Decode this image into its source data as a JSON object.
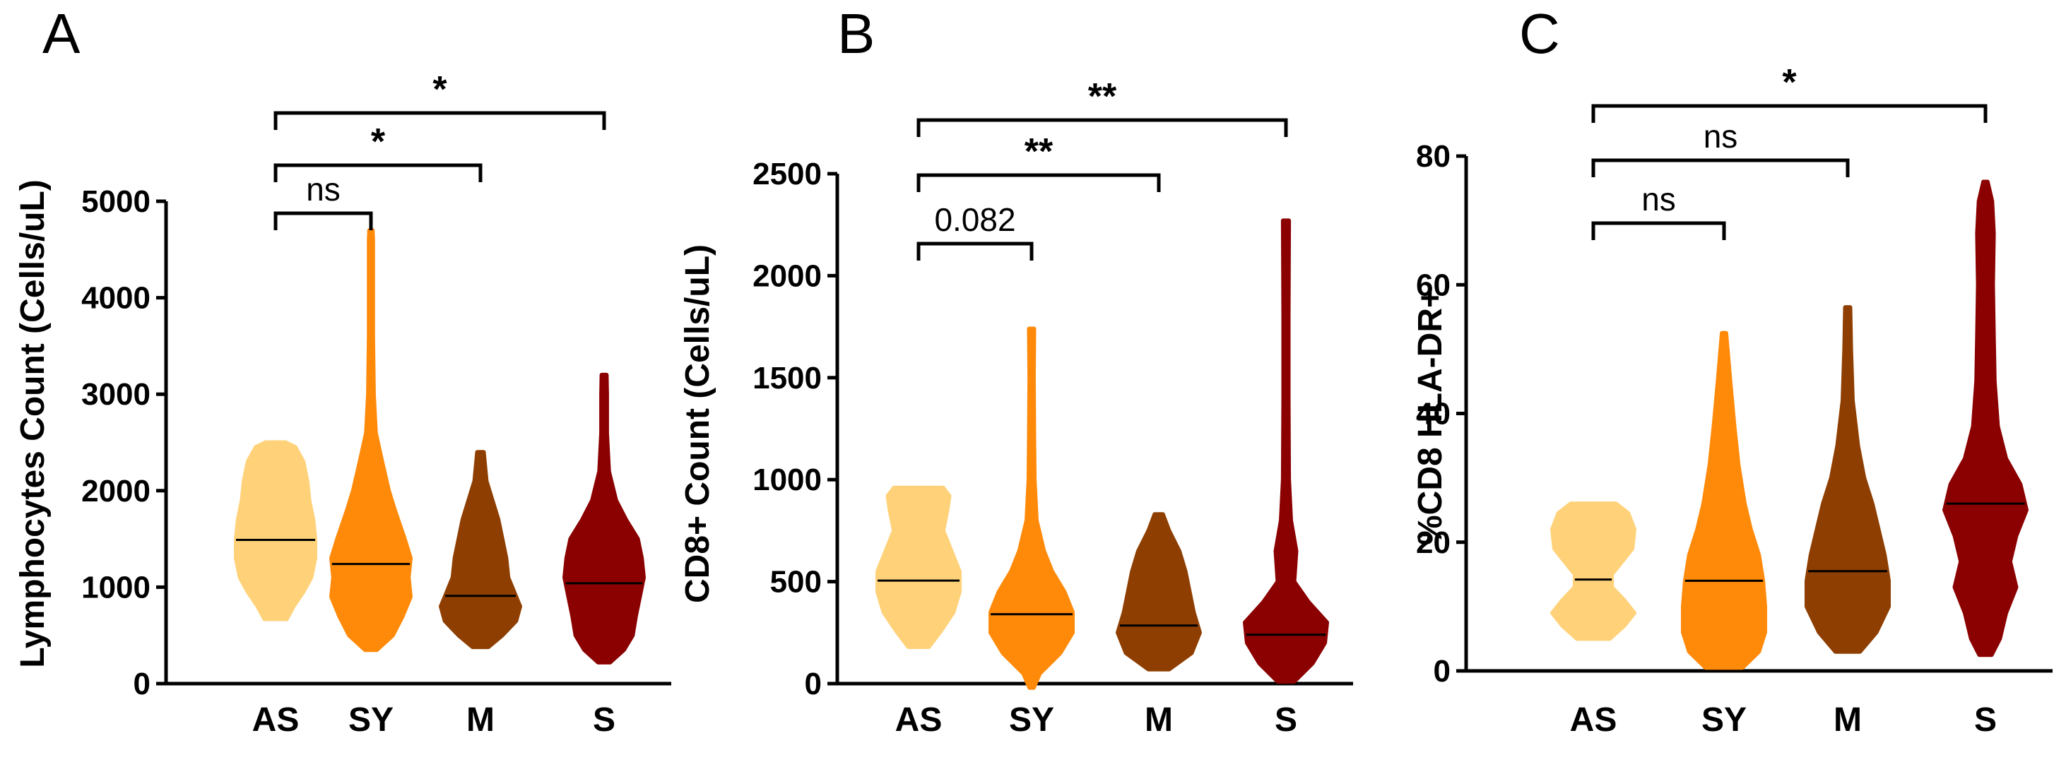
{
  "colors": {
    "AS": "#FFD27A",
    "SY": "#FF8A0A",
    "M": "#8E3E00",
    "S": "#8B0000",
    "median": "#000000"
  },
  "chart_data": [
    {
      "type": "violin",
      "panel": "A",
      "ylabel": "Lymphocytes Count (Cells/uL)",
      "categories": [
        "AS",
        "SY",
        "M",
        "S"
      ],
      "ylim": [
        0,
        5000
      ],
      "yticks": [
        "0",
        "1000",
        "2000",
        "3000",
        "4000",
        "5000"
      ],
      "ytick_values": [
        0,
        1000,
        2000,
        3000,
        4000,
        5000
      ],
      "series": [
        {
          "name": "AS",
          "min": 670,
          "max": 2500,
          "median": 1490,
          "density": [
            [
              670,
              0.28
            ],
            [
              800,
              0.45
            ],
            [
              950,
              0.7
            ],
            [
              1100,
              0.9
            ],
            [
              1300,
              1.0
            ],
            [
              1500,
              1.0
            ],
            [
              1700,
              0.95
            ],
            [
              1900,
              0.85
            ],
            [
              2100,
              0.8
            ],
            [
              2300,
              0.7
            ],
            [
              2450,
              0.5
            ],
            [
              2500,
              0.25
            ]
          ]
        },
        {
          "name": "SY",
          "min": 350,
          "max": 4700,
          "median": 1240,
          "density": [
            [
              350,
              0.15
            ],
            [
              500,
              0.55
            ],
            [
              700,
              0.8
            ],
            [
              900,
              1.0
            ],
            [
              1100,
              0.95
            ],
            [
              1300,
              1.0
            ],
            [
              1500,
              0.85
            ],
            [
              1800,
              0.6
            ],
            [
              2000,
              0.45
            ],
            [
              2300,
              0.28
            ],
            [
              2600,
              0.12
            ],
            [
              3000,
              0.07
            ],
            [
              3600,
              0.05
            ],
            [
              4200,
              0.05
            ],
            [
              4600,
              0.05
            ],
            [
              4700,
              0.04
            ]
          ]
        },
        {
          "name": "M",
          "min": 380,
          "max": 2400,
          "median": 910,
          "density": [
            [
              380,
              0.2
            ],
            [
              500,
              0.55
            ],
            [
              650,
              0.9
            ],
            [
              800,
              1.0
            ],
            [
              950,
              0.85
            ],
            [
              1100,
              0.7
            ],
            [
              1300,
              0.65
            ],
            [
              1500,
              0.55
            ],
            [
              1700,
              0.45
            ],
            [
              1900,
              0.3
            ],
            [
              2100,
              0.15
            ],
            [
              2400,
              0.08
            ]
          ]
        },
        {
          "name": "S",
          "min": 220,
          "max": 3200,
          "median": 1040,
          "density": [
            [
              220,
              0.15
            ],
            [
              350,
              0.5
            ],
            [
              500,
              0.72
            ],
            [
              700,
              0.8
            ],
            [
              900,
              0.9
            ],
            [
              1100,
              1.0
            ],
            [
              1300,
              0.95
            ],
            [
              1500,
              0.85
            ],
            [
              1700,
              0.55
            ],
            [
              1900,
              0.3
            ],
            [
              2200,
              0.12
            ],
            [
              2600,
              0.07
            ],
            [
              3000,
              0.07
            ],
            [
              3200,
              0.06
            ]
          ]
        }
      ],
      "comparisons": [
        {
          "from": "AS",
          "to": "SY",
          "label": "ns",
          "level": 0
        },
        {
          "from": "AS",
          "to": "M",
          "label": "*",
          "level": 1
        },
        {
          "from": "AS",
          "to": "S",
          "label": "*",
          "level": 2
        }
      ]
    },
    {
      "type": "violin",
      "panel": "B",
      "ylabel": "CD8+ Count (Cells/uL)",
      "categories": [
        "AS",
        "SY",
        "M",
        "S"
      ],
      "ylim": [
        0,
        2500
      ],
      "yticks": [
        "0",
        "500",
        "1000",
        "1500",
        "2000",
        "2500"
      ],
      "ytick_values": [
        0,
        500,
        1000,
        1500,
        2000,
        2500
      ],
      "series": [
        {
          "name": "AS",
          "min": 180,
          "max": 960,
          "median": 505,
          "density": [
            [
              180,
              0.25
            ],
            [
              260,
              0.55
            ],
            [
              350,
              0.85
            ],
            [
              450,
              1.0
            ],
            [
              550,
              1.0
            ],
            [
              650,
              0.8
            ],
            [
              750,
              0.6
            ],
            [
              850,
              0.7
            ],
            [
              920,
              0.75
            ],
            [
              960,
              0.6
            ]
          ]
        },
        {
          "name": "SY",
          "min": -20,
          "max": 1740,
          "median": 340,
          "density": [
            [
              -20,
              0.05
            ],
            [
              50,
              0.2
            ],
            [
              150,
              0.7
            ],
            [
              250,
              1.0
            ],
            [
              350,
              1.0
            ],
            [
              450,
              0.8
            ],
            [
              550,
              0.5
            ],
            [
              650,
              0.3
            ],
            [
              800,
              0.12
            ],
            [
              1000,
              0.07
            ],
            [
              1200,
              0.06
            ],
            [
              1500,
              0.05
            ],
            [
              1740,
              0.06
            ]
          ]
        },
        {
          "name": "M",
          "min": 70,
          "max": 830,
          "median": 285,
          "density": [
            [
              70,
              0.25
            ],
            [
              150,
              0.8
            ],
            [
              250,
              1.0
            ],
            [
              350,
              0.85
            ],
            [
              450,
              0.75
            ],
            [
              550,
              0.65
            ],
            [
              650,
              0.5
            ],
            [
              750,
              0.25
            ],
            [
              830,
              0.1
            ]
          ]
        },
        {
          "name": "S",
          "min": 10,
          "max": 2270,
          "median": 240,
          "density": [
            [
              10,
              0.2
            ],
            [
              100,
              0.65
            ],
            [
              200,
              0.95
            ],
            [
              300,
              1.0
            ],
            [
              400,
              0.55
            ],
            [
              500,
              0.2
            ],
            [
              650,
              0.25
            ],
            [
              800,
              0.12
            ],
            [
              1000,
              0.07
            ],
            [
              1400,
              0.06
            ],
            [
              1800,
              0.06
            ],
            [
              2270,
              0.07
            ]
          ]
        }
      ],
      "comparisons": [
        {
          "from": "AS",
          "to": "SY",
          "label": "0.082",
          "level": 0
        },
        {
          "from": "AS",
          "to": "M",
          "label": "**",
          "level": 1
        },
        {
          "from": "AS",
          "to": "S",
          "label": "**",
          "level": 2
        }
      ]
    },
    {
      "type": "violin",
      "panel": "C",
      "ylabel": "%CD8 HLA-DR+",
      "categories": [
        "AS",
        "SY",
        "M",
        "S"
      ],
      "ylim": [
        0,
        80
      ],
      "yticks": [
        "0",
        "20",
        "40",
        "60",
        "80"
      ],
      "ytick_values": [
        0,
        20,
        40,
        60,
        80
      ],
      "series": [
        {
          "name": "AS",
          "min": 5,
          "max": 26,
          "median": 14.2,
          "density": [
            [
              5,
              0.4
            ],
            [
              7,
              0.75
            ],
            [
              9,
              1.0
            ],
            [
              11,
              0.75
            ],
            [
              13,
              0.45
            ],
            [
              15,
              0.45
            ],
            [
              17,
              0.7
            ],
            [
              19,
              0.95
            ],
            [
              22,
              1.0
            ],
            [
              24.5,
              0.85
            ],
            [
              26,
              0.55
            ]
          ]
        },
        {
          "name": "SY",
          "min": 0.5,
          "max": 52.5,
          "median": 14,
          "density": [
            [
              0.5,
              0.45
            ],
            [
              3,
              0.85
            ],
            [
              6,
              1.0
            ],
            [
              10,
              1.0
            ],
            [
              14,
              0.95
            ],
            [
              18,
              0.85
            ],
            [
              22,
              0.65
            ],
            [
              26,
              0.5
            ],
            [
              32,
              0.35
            ],
            [
              38,
              0.25
            ],
            [
              45,
              0.15
            ],
            [
              52.5,
              0.05
            ]
          ]
        },
        {
          "name": "M",
          "min": 3,
          "max": 56.5,
          "median": 15.5,
          "density": [
            [
              3,
              0.3
            ],
            [
              6,
              0.7
            ],
            [
              10,
              1.0
            ],
            [
              14,
              1.0
            ],
            [
              18,
              0.9
            ],
            [
              22,
              0.75
            ],
            [
              26,
              0.6
            ],
            [
              30,
              0.4
            ],
            [
              35,
              0.25
            ],
            [
              42,
              0.12
            ],
            [
              50,
              0.08
            ],
            [
              56.5,
              0.06
            ]
          ]
        },
        {
          "name": "S",
          "min": 2.5,
          "max": 76,
          "median": 26,
          "density": [
            [
              2.5,
              0.15
            ],
            [
              5,
              0.35
            ],
            [
              9,
              0.5
            ],
            [
              13,
              0.75
            ],
            [
              17,
              0.6
            ],
            [
              21,
              0.75
            ],
            [
              25,
              1.0
            ],
            [
              29,
              0.85
            ],
            [
              33,
              0.5
            ],
            [
              38,
              0.3
            ],
            [
              45,
              0.22
            ],
            [
              52,
              0.2
            ],
            [
              60,
              0.18
            ],
            [
              68,
              0.2
            ],
            [
              73,
              0.16
            ],
            [
              76,
              0.05
            ]
          ]
        }
      ],
      "comparisons": [
        {
          "from": "AS",
          "to": "SY",
          "label": "ns",
          "level": 0
        },
        {
          "from": "AS",
          "to": "M",
          "label": "ns",
          "level": 1
        },
        {
          "from": "AS",
          "to": "S",
          "label": "*",
          "level": 2
        }
      ]
    }
  ]
}
